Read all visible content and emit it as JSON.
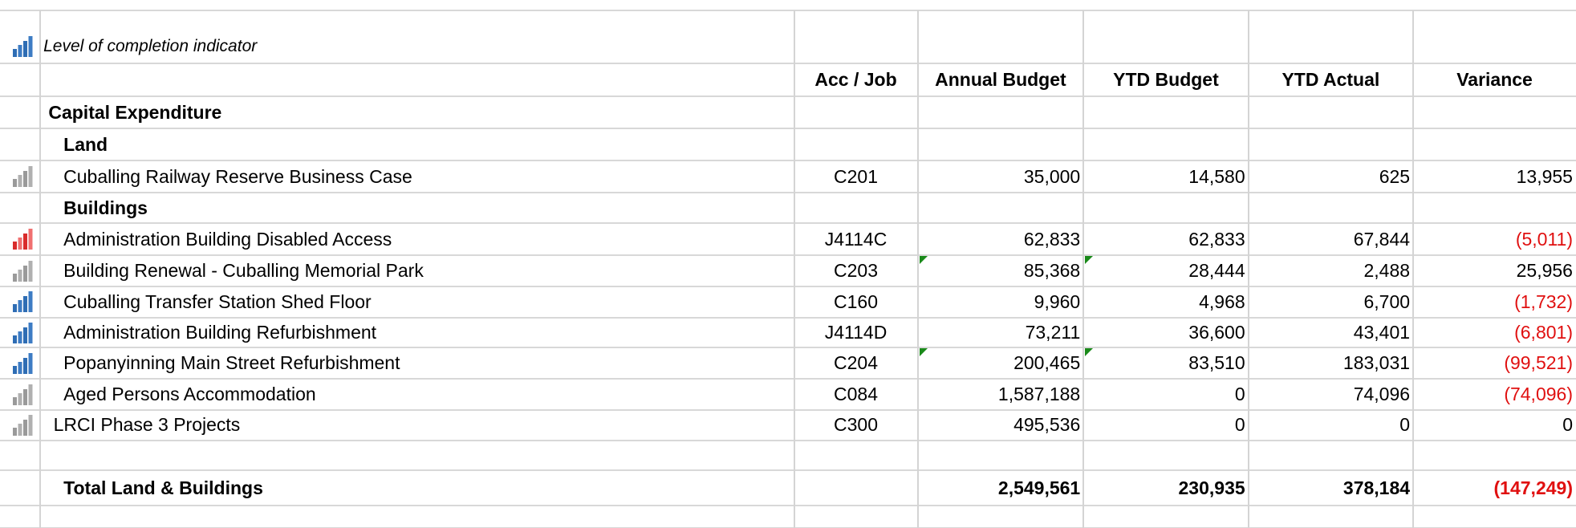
{
  "legend": {
    "text": "Level of completion indicator",
    "indicator": "blue"
  },
  "header": [
    "Acc / Job",
    "Annual Budget",
    "YTD Budget",
    "YTD Actual",
    "Variance"
  ],
  "rows": [
    {
      "name": "Capital Expenditure",
      "style": "section"
    },
    {
      "name": "Land",
      "style": "group"
    },
    {
      "name": "Cuballing Railway Reserve Business Case",
      "indicator": "grey",
      "cells": [
        "C201",
        "35,000",
        "14,580",
        "625",
        "13,955"
      ]
    },
    {
      "name": "Buildings",
      "style": "group"
    },
    {
      "name": "Administration Building Disabled Access",
      "indicator": "red",
      "cells": [
        "J4114C",
        "62,833",
        "62,833",
        "67,844",
        "(5,011)"
      ]
    },
    {
      "name": "Building Renewal - Cuballing Memorial Park",
      "indicator": "grey",
      "cells": [
        "C203",
        "85,368",
        "28,444",
        "2,488",
        "25,956"
      ]
    },
    {
      "name": "Cuballing Transfer Station Shed Floor",
      "indicator": "blue",
      "cells": [
        "C160",
        "9,960",
        "4,968",
        "6,700",
        "(1,732)"
      ]
    },
    {
      "name": "Administration Building Refurbishment",
      "indicator": "blue",
      "cells": [
        "J4114D",
        "73,211",
        "36,600",
        "43,401",
        "(6,801)"
      ]
    },
    {
      "name": "Popanyinning Main Street Refurbishment",
      "indicator": "blue",
      "cells": [
        "C204",
        "200,465",
        "83,510",
        "183,031",
        "(99,521)"
      ]
    },
    {
      "name": "Aged Persons Accommodation",
      "indicator": "grey",
      "cells": [
        "C084",
        "1,587,188",
        "0",
        "74,096",
        "(74,096)"
      ]
    },
    {
      "name": "LRCI Phase 3 Projects",
      "indicator": "grey",
      "style": "outdent",
      "cells": [
        "C300",
        "495,536",
        "0",
        "0",
        "0"
      ]
    },
    {
      "name": "Total Land & Buildings",
      "style": "total",
      "cells": [
        "",
        "2,549,561",
        "230,935",
        "378,184",
        "(147,249)"
      ]
    }
  ]
}
